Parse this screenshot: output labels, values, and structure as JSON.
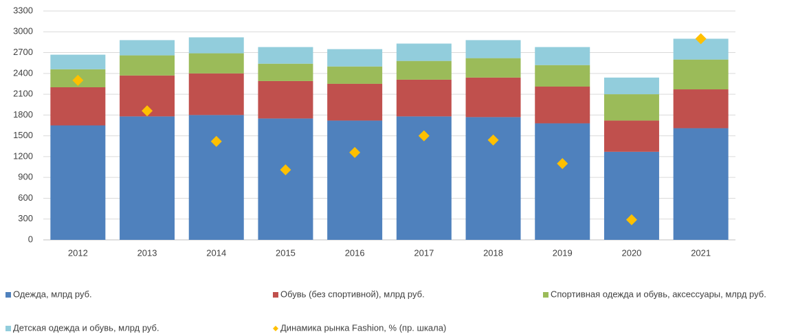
{
  "chart_data": {
    "type": "bar",
    "stacked": true,
    "categories": [
      "2012",
      "2013",
      "2014",
      "2015",
      "2016",
      "2017",
      "2018",
      "2019",
      "2020",
      "2021"
    ],
    "series": [
      {
        "name": "Одежда, млрд руб.",
        "color": "#4f81bd",
        "kind": "bar",
        "values": [
          1650,
          1780,
          1800,
          1750,
          1720,
          1780,
          1770,
          1680,
          1270,
          1610
        ]
      },
      {
        "name": "Обувь (без спортивной), млрд руб.",
        "color": "#c0504d",
        "kind": "bar",
        "values": [
          550,
          590,
          600,
          540,
          530,
          530,
          570,
          530,
          450,
          560
        ]
      },
      {
        "name": "Спортивная одежда и обувь, аксессуары, млрд руб.",
        "color": "#9bbb59",
        "kind": "bar",
        "values": [
          260,
          290,
          290,
          250,
          250,
          270,
          280,
          310,
          380,
          430
        ]
      },
      {
        "name": "Детская одежда и обувь, млрд руб.",
        "color": "#92cddc",
        "kind": "bar",
        "values": [
          210,
          220,
          230,
          240,
          250,
          250,
          260,
          260,
          240,
          300
        ]
      },
      {
        "name": "Динамика рынка Fashion, % (пр. шкала)",
        "color": "#ffc000",
        "kind": "diamond",
        "values": [
          2300,
          1860,
          1420,
          1010,
          1260,
          1500,
          1440,
          1100,
          290,
          2900
        ]
      }
    ],
    "ylim": [
      0,
      3300
    ],
    "yticks": [
      0,
      300,
      600,
      900,
      1200,
      1500,
      1800,
      2100,
      2400,
      2700,
      3000,
      3300
    ],
    "grid": true,
    "legend": "bottom"
  }
}
